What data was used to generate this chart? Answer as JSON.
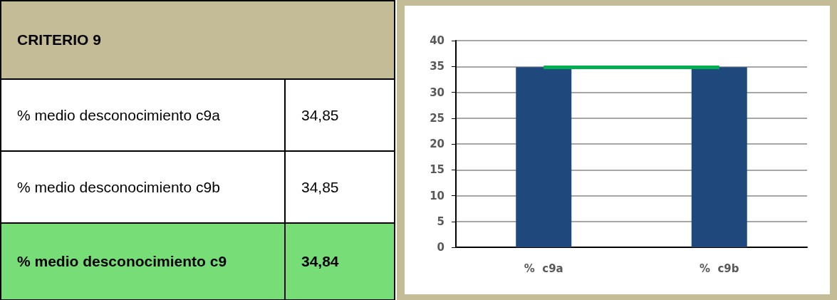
{
  "chart_data": {
    "type": "bar",
    "title": "CRITERIO 9",
    "categories": [
      "%  c9a",
      "%  c9b"
    ],
    "values": [
      34.85,
      34.85
    ],
    "color": "#1f497d",
    "annotations": [
      "% medio  desconocimiento c9a",
      "34,85",
      "% medio desconocimiento c9b",
      "34,85",
      "% medio desconocimiento c9",
      "34,84"
    ],
    "ref_lines": [
      {
        "axis": "y",
        "value": 34.84,
        "color": "#00b050"
      }
    ],
    "ylim": [
      0,
      40
    ],
    "yticks": [
      0,
      5,
      10,
      15,
      20,
      25,
      30,
      35,
      40
    ],
    "grid": "y"
  }
}
